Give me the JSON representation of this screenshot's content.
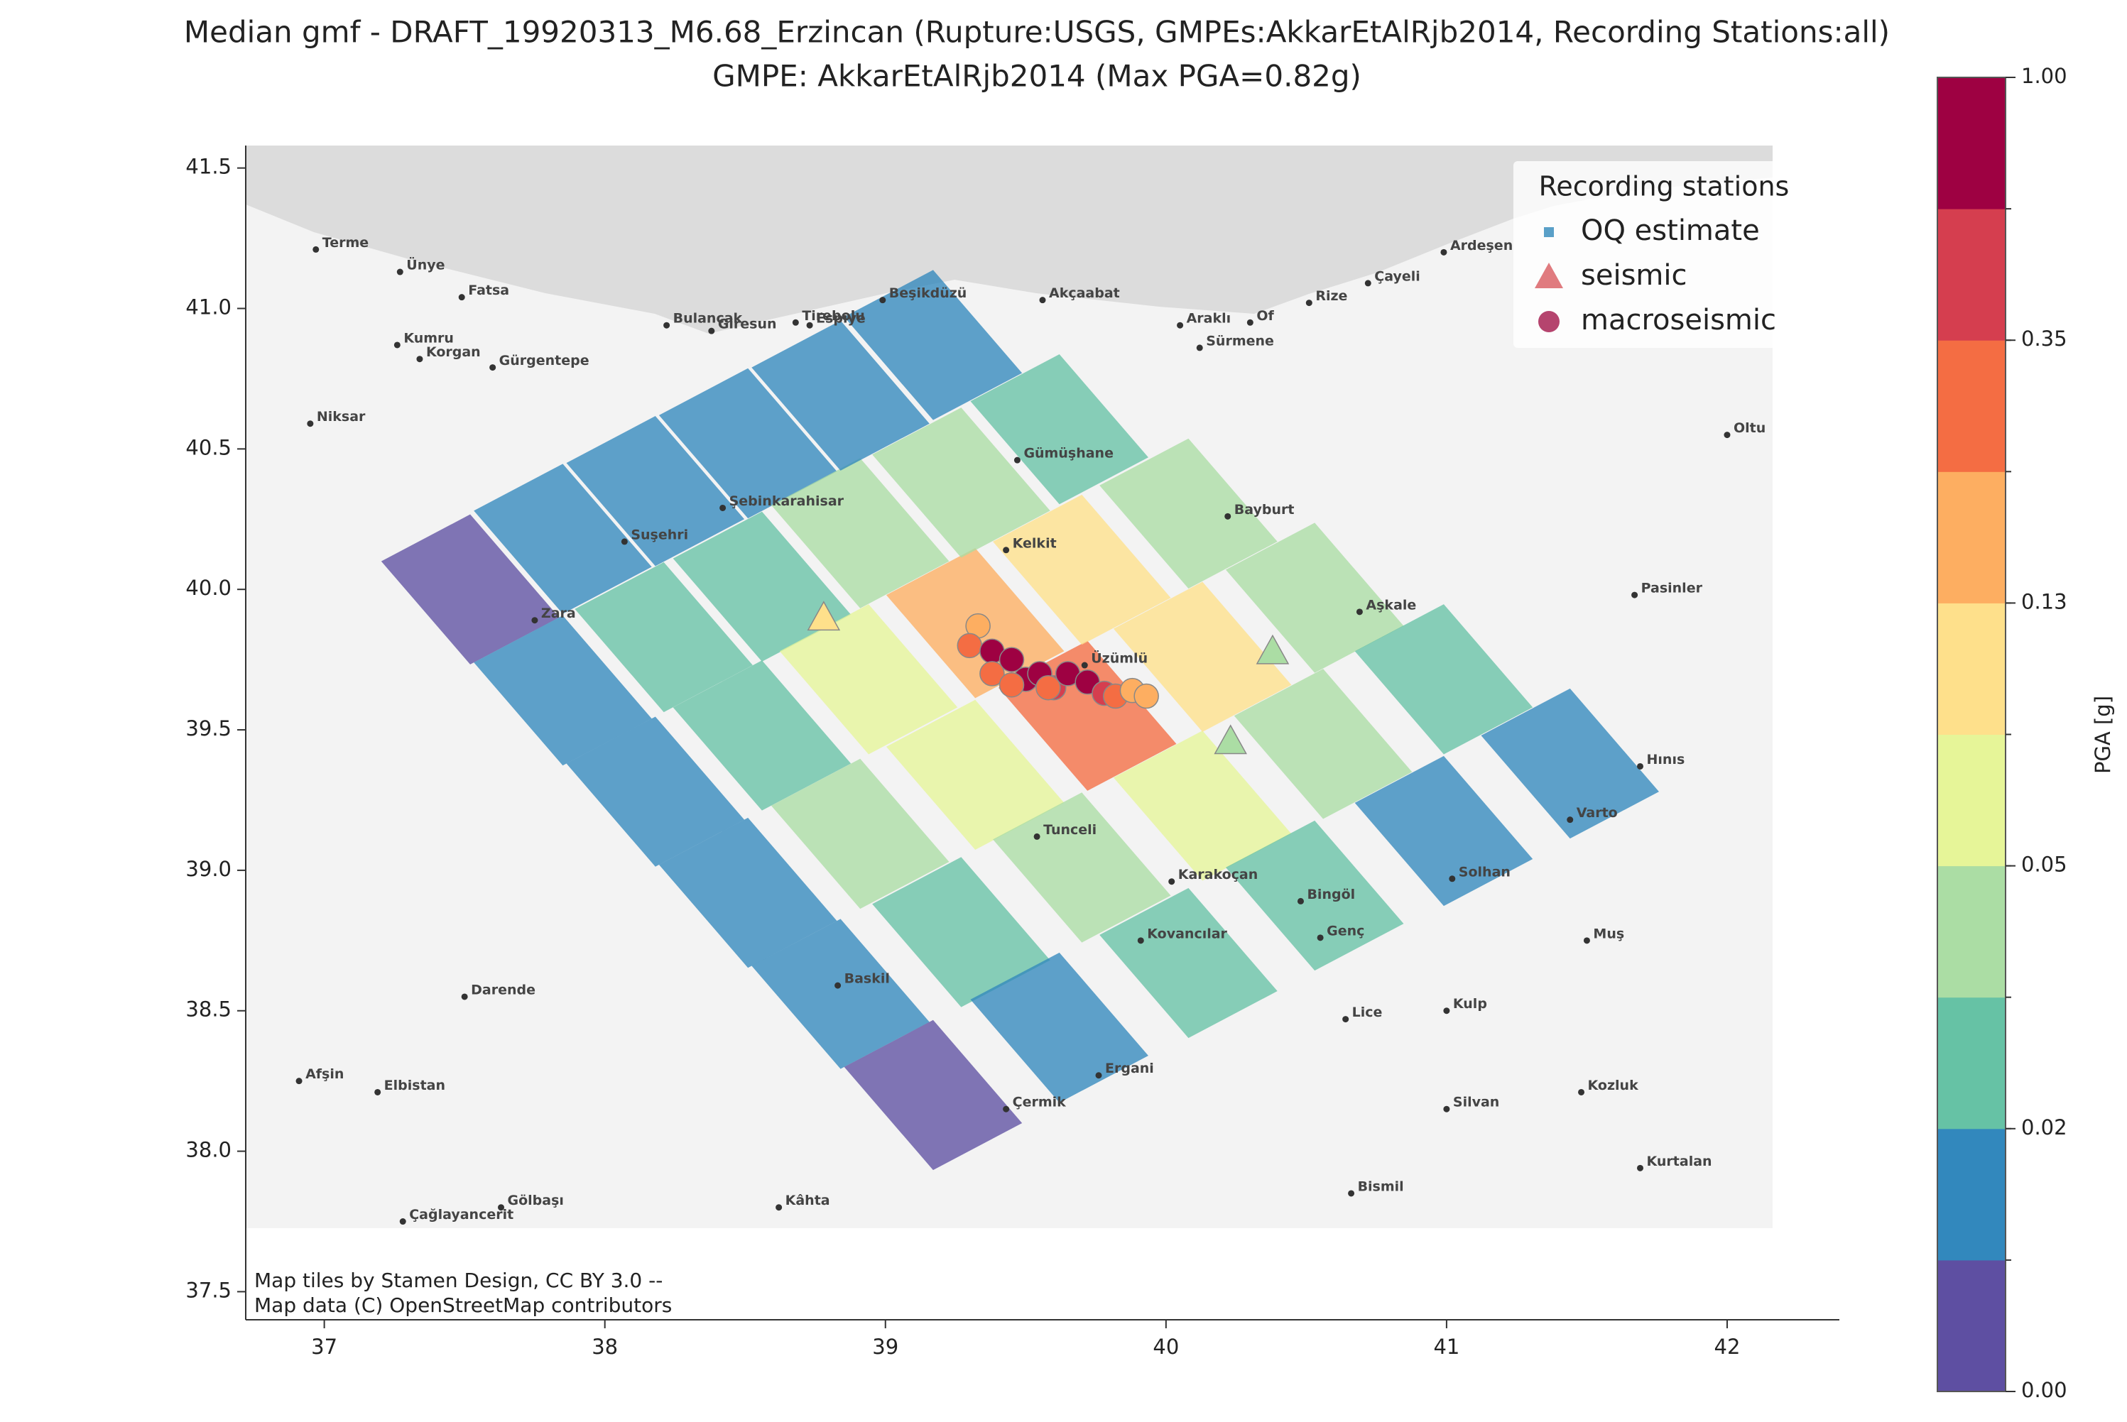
{
  "chart_data": {
    "type": "map",
    "title": "Median gmf - DRAFT_19920313_M6.68_Erzincan (Rupture:USGS, GMPEs:AkkarEtAlRjb2014, Recording Stations:all)",
    "subtitle": "GMPE: AkkarEtAlRjb2014 (Max PGA=0.82g)",
    "xlim": [
      36.72,
      42.4
    ],
    "ylim": [
      37.4,
      41.58
    ],
    "xticks": [
      37,
      38,
      39,
      40,
      41,
      42
    ],
    "yticks": [
      {
        "value": 37.5,
        "label": "37.5"
      },
      {
        "value": 38,
        "label": "38.0"
      },
      {
        "value": 38.5,
        "label": "38.5"
      },
      {
        "value": 39,
        "label": "39.0"
      },
      {
        "value": 39.5,
        "label": "39.5"
      },
      {
        "value": 40,
        "label": "40.0"
      },
      {
        "value": 40.5,
        "label": "40.5"
      },
      {
        "value": 41,
        "label": "41.0"
      },
      {
        "value": 41.5,
        "label": "41.5"
      }
    ],
    "legend": "upper right",
    "legend_title": "Recording stations",
    "colorbar": {
      "label": "PGA [g]",
      "colors": [
        "#5e4fa2",
        "#3288bd",
        "#66c2a5",
        "#abdda4",
        "#e6f598",
        "#fee08b",
        "#fdae61",
        "#f46d43",
        "#d53e4f",
        "#9e0142"
      ],
      "boundaries": [
        0,
        0.01,
        0.02,
        0.03,
        0.05,
        0.08,
        0.13,
        0.21,
        0.35,
        0.6,
        1
      ],
      "ticks": [
        {
          "value": 0,
          "label": "0.00"
        },
        0.02,
        0.05,
        0.13,
        0.35,
        {
          "value": 1,
          "label": "1.00"
        }
      ]
    },
    "series": [
      {
        "name": "OQ estimate",
        "marker": "square",
        "legend_color": "#5aa0c8",
        "x": [
          37.52,
          37.85,
          38.18,
          38.51,
          38.84,
          39.17,
          37.85,
          38.21,
          38.56,
          38.91,
          39.27,
          39.62,
          38.18,
          38.56,
          38.94,
          39.32,
          39.7,
          40.08,
          38.51,
          38.91,
          39.32,
          39.72,
          40.13,
          40.53,
          38.84,
          39.27,
          39.7,
          40.13,
          40.56,
          40.99,
          39.17,
          39.62,
          40.08,
          40.53,
          40.99,
          41.44
        ],
        "y": [
          40.0,
          39.64,
          39.28,
          38.92,
          38.56,
          38.2,
          40.18,
          39.83,
          39.48,
          39.13,
          38.78,
          38.44,
          40.35,
          40.01,
          39.68,
          39.34,
          39.01,
          38.67,
          40.52,
          40.2,
          39.88,
          39.55,
          39.23,
          38.91,
          40.69,
          40.38,
          40.07,
          39.76,
          39.45,
          39.14,
          40.87,
          40.57,
          40.27,
          39.97,
          39.68,
          39.38
        ],
        "values": [
          0.008,
          0.014,
          0.018,
          0.018,
          0.015,
          0.009,
          0.013,
          0.02,
          0.029,
          0.032,
          0.025,
          0.016,
          0.015,
          0.028,
          0.059,
          0.078,
          0.04,
          0.021,
          0.018,
          0.036,
          0.135,
          0.28,
          0.053,
          0.022,
          0.018,
          0.037,
          0.1,
          0.098,
          0.037,
          0.018,
          0.017,
          0.028,
          0.043,
          0.038,
          0.022,
          0.014
        ]
      },
      {
        "name": "seismic",
        "marker": "triangle",
        "legend_color": "#e07b7f",
        "x": [
          38.78,
          40.38,
          40.23
        ],
        "y": [
          39.9,
          39.78,
          39.46
        ],
        "values": [
          0.09,
          0.045,
          0.048
        ]
      },
      {
        "name": "macroseismic",
        "marker": "circle",
        "legend_color": "#b5446e",
        "x": [
          39.33,
          39.3,
          39.38,
          39.45,
          39.38,
          39.5,
          39.55,
          39.6,
          39.65,
          39.72,
          39.78,
          39.82,
          39.88,
          39.93,
          39.58,
          39.45
        ],
        "y": [
          39.87,
          39.8,
          39.78,
          39.75,
          39.7,
          39.68,
          39.7,
          39.65,
          39.7,
          39.67,
          39.63,
          39.62,
          39.64,
          39.62,
          39.65,
          39.66
        ],
        "values": [
          0.2,
          0.25,
          0.6,
          0.8,
          0.3,
          0.7,
          0.9,
          0.4,
          0.8,
          0.7,
          0.5,
          0.3,
          0.2,
          0.18,
          0.25,
          0.3
        ]
      }
    ],
    "places": [
      {
        "name": "Terme",
        "x": 36.97,
        "y": 41.21
      },
      {
        "name": "Ünye",
        "x": 37.27,
        "y": 41.13
      },
      {
        "name": "Fatsa",
        "x": 37.49,
        "y": 41.04
      },
      {
        "name": "Bulancak",
        "x": 38.22,
        "y": 40.94
      },
      {
        "name": "Tirebolu",
        "x": 38.68,
        "y": 40.95
      },
      {
        "name": "Beşikdüzü",
        "x": 38.99,
        "y": 41.03
      },
      {
        "name": "Akçaabat",
        "x": 39.56,
        "y": 41.03
      },
      {
        "name": "Araklı",
        "x": 40.05,
        "y": 40.94
      },
      {
        "name": "Of",
        "x": 40.3,
        "y": 40.95
      },
      {
        "name": "Rize",
        "x": 40.51,
        "y": 41.02
      },
      {
        "name": "Çayeli",
        "x": 40.72,
        "y": 41.09
      },
      {
        "name": "Ardeşen",
        "x": 40.99,
        "y": 41.2
      },
      {
        "name": "Kumru",
        "x": 37.26,
        "y": 40.87
      },
      {
        "name": "Korgan",
        "x": 37.34,
        "y": 40.82
      },
      {
        "name": "Gürgentepe",
        "x": 37.6,
        "y": 40.79
      },
      {
        "name": "Giresun",
        "x": 38.38,
        "y": 40.92
      },
      {
        "name": "Espiye",
        "x": 38.73,
        "y": 40.94
      },
      {
        "name": "Sürmene",
        "x": 40.12,
        "y": 40.86
      },
      {
        "name": "Niksar",
        "x": 36.95,
        "y": 40.59
      },
      {
        "name": "Gümüşhane",
        "x": 39.47,
        "y": 40.46
      },
      {
        "name": "Şebinkarahisar",
        "x": 38.42,
        "y": 40.29
      },
      {
        "name": "Bayburt",
        "x": 40.22,
        "y": 40.26
      },
      {
        "name": "Kelkit",
        "x": 39.43,
        "y": 40.14
      },
      {
        "name": "Suşehri",
        "x": 38.07,
        "y": 40.17
      },
      {
        "name": "Zara",
        "x": 37.75,
        "y": 39.89
      },
      {
        "name": "Aşkale",
        "x": 40.69,
        "y": 39.92
      },
      {
        "name": "Pasinler",
        "x": 41.67,
        "y": 39.98
      },
      {
        "name": "Oltu",
        "x": 42.0,
        "y": 40.55
      },
      {
        "name": "Üzümlü",
        "x": 39.71,
        "y": 39.73
      },
      {
        "name": "Tunceli",
        "x": 39.54,
        "y": 39.12
      },
      {
        "name": "Karakoçan",
        "x": 40.02,
        "y": 38.96
      },
      {
        "name": "Bingöl",
        "x": 40.48,
        "y": 38.89
      },
      {
        "name": "Genç",
        "x": 40.55,
        "y": 38.76
      },
      {
        "name": "Kovancılar",
        "x": 39.91,
        "y": 38.75
      },
      {
        "name": "Solhan",
        "x": 41.02,
        "y": 38.97
      },
      {
        "name": "Varto",
        "x": 41.44,
        "y": 39.18
      },
      {
        "name": "Hınıs",
        "x": 41.69,
        "y": 39.37
      },
      {
        "name": "Muş",
        "x": 41.5,
        "y": 38.75
      },
      {
        "name": "Darende",
        "x": 37.5,
        "y": 38.55
      },
      {
        "name": "Baskil",
        "x": 38.83,
        "y": 38.59
      },
      {
        "name": "Lice",
        "x": 40.64,
        "y": 38.47
      },
      {
        "name": "Kulp",
        "x": 41.0,
        "y": 38.5
      },
      {
        "name": "Afşin",
        "x": 36.91,
        "y": 38.25
      },
      {
        "name": "Elbistan",
        "x": 37.19,
        "y": 38.21
      },
      {
        "name": "Ergani",
        "x": 39.76,
        "y": 38.27
      },
      {
        "name": "Çermik",
        "x": 39.43,
        "y": 38.15
      },
      {
        "name": "Silvan",
        "x": 41.0,
        "y": 38.15
      },
      {
        "name": "Kozluk",
        "x": 41.48,
        "y": 38.21
      },
      {
        "name": "Kurtalan",
        "x": 41.69,
        "y": 37.94
      },
      {
        "name": "Bismil",
        "x": 40.66,
        "y": 37.85
      },
      {
        "name": "Kâhta",
        "x": 38.62,
        "y": 37.8
      },
      {
        "name": "Gölbaşı",
        "x": 37.63,
        "y": 37.8
      },
      {
        "name": "Çağlayancerit",
        "x": 37.28,
        "y": 37.75
      }
    ],
    "attribution": [
      "Map tiles by Stamen Design, CC BY 3.0 --",
      "Map data (C) OpenStreetMap contributors"
    ]
  }
}
